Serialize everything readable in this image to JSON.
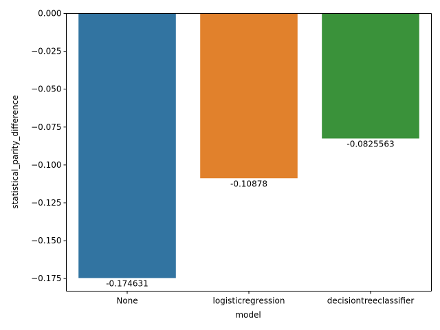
{
  "chart_data": {
    "type": "bar",
    "xlabel": "model",
    "ylabel": "statistical_parity_difference",
    "categories": [
      "None",
      "logisticregression",
      "decisiontreeclassifier"
    ],
    "values": [
      -0.174631,
      -0.10878,
      -0.0825563
    ],
    "value_labels": [
      "-0.174631",
      "-0.10878",
      "-0.0825563"
    ],
    "colors": [
      "#3274a1",
      "#e1812c",
      "#3a923a"
    ],
    "ylim": [
      -0.1833,
      0.0
    ],
    "yticks": [
      0.0,
      -0.025,
      -0.05,
      -0.075,
      -0.1,
      -0.125,
      -0.15,
      -0.175
    ],
    "ytick_labels": [
      "0.000",
      "−0.025",
      "−0.050",
      "−0.075",
      "−0.100",
      "−0.125",
      "−0.150",
      "−0.175"
    ],
    "grid": false,
    "legend": "none"
  }
}
